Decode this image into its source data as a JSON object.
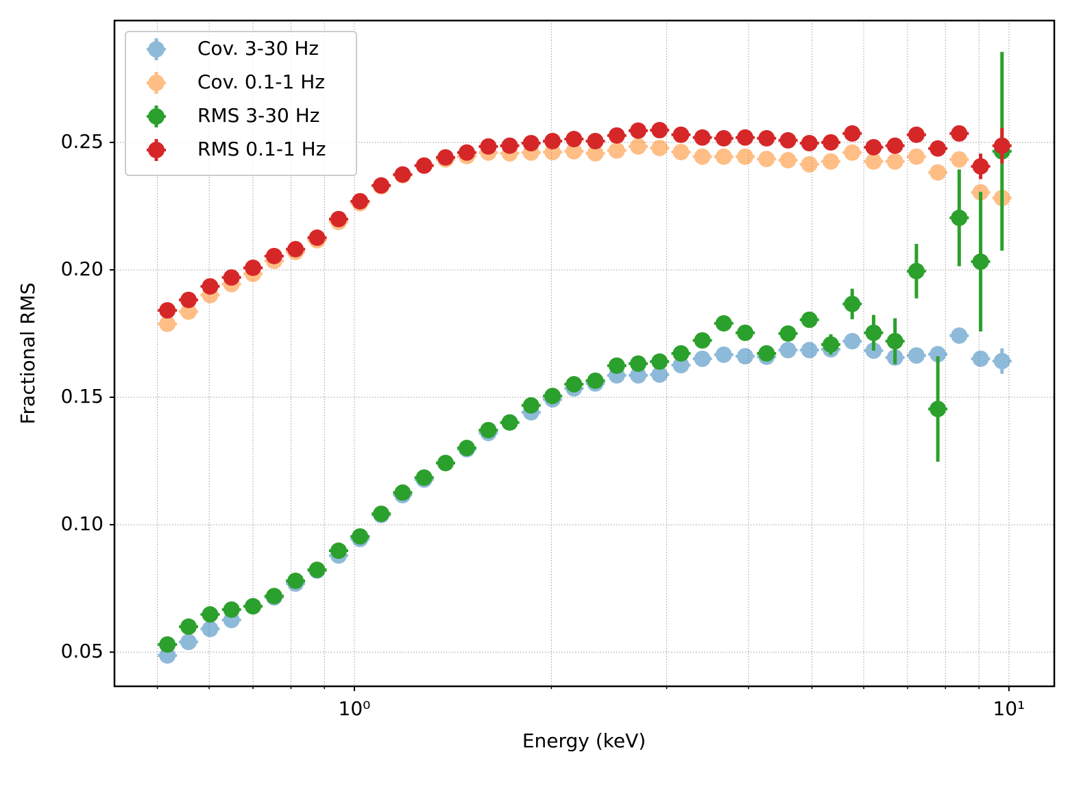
{
  "chart_data": {
    "type": "errorbar",
    "xlabel": "Energy (keV)",
    "ylabel": "Fractional RMS",
    "xlog": true,
    "grid": true,
    "legend": "upper left",
    "xlim": [
      0.43,
      11.73
    ],
    "ylim": [
      0.0366,
      0.2978
    ],
    "xticks": [
      {
        "value": 1,
        "label": "10⁰"
      },
      {
        "value": 10,
        "label": "10¹"
      }
    ],
    "xminorticks": [
      0.5,
      0.6,
      0.7,
      0.8,
      0.9,
      2,
      3,
      4,
      5,
      6,
      7,
      8,
      9
    ],
    "yticks": [
      0.05,
      {
        "value": 0.1,
        "label": "0.10"
      },
      0.15,
      {
        "value": 0.2,
        "label": "0.20"
      },
      0.25
    ],
    "x": [
      0.518,
      0.558,
      0.602,
      0.649,
      0.7,
      0.754,
      0.813,
      0.877,
      0.946,
      1.02,
      1.099,
      1.185,
      1.278,
      1.378,
      1.485,
      1.602,
      1.727,
      1.862,
      2.008,
      2.165,
      2.334,
      2.517,
      2.714,
      2.926,
      3.155,
      3.401,
      3.667,
      3.954,
      4.263,
      4.597,
      4.956,
      5.344,
      5.762,
      6.212,
      6.698,
      7.222,
      7.787,
      8.395,
      9.052,
      9.759
    ],
    "series": [
      {
        "name": "Cov. 3-30 Hz",
        "color": "#1f77b4",
        "alpha": 0.5,
        "values": [
          0.0487,
          0.054,
          0.0591,
          0.0626,
          0.068,
          0.0715,
          0.0769,
          0.082,
          0.0879,
          0.0944,
          0.1038,
          0.1116,
          0.1177,
          0.1242,
          0.1296,
          0.136,
          0.1401,
          0.1441,
          0.1492,
          0.1535,
          0.1554,
          0.1586,
          0.1586,
          0.1589,
          0.1626,
          0.1651,
          0.1667,
          0.1661,
          0.1659,
          0.1685,
          0.1685,
          0.1688,
          0.172,
          0.1683,
          0.1656,
          0.1664,
          0.1669,
          0.1742,
          0.1651,
          0.1642
        ],
        "errors": [
          0.0015,
          0.0015,
          0.0015,
          0.0015,
          0.0015,
          0.0015,
          0.0015,
          0.0015,
          0.0015,
          0.0015,
          0.0015,
          0.0015,
          0.0015,
          0.0015,
          0.0015,
          0.0015,
          0.0015,
          0.0015,
          0.0015,
          0.0015,
          0.0015,
          0.0015,
          0.0015,
          0.0015,
          0.0015,
          0.0015,
          0.0015,
          0.0015,
          0.0015,
          0.0015,
          0.0015,
          0.0015,
          0.0015,
          0.0015,
          0.0015,
          0.0015,
          0.0015,
          0.002,
          0.003,
          0.005
        ]
      },
      {
        "name": "Cov. 0.1-1 Hz",
        "color": "#ff7f0e",
        "alpha": 0.5,
        "values": [
          0.1788,
          0.1836,
          0.1901,
          0.1944,
          0.1984,
          0.2035,
          0.207,
          0.2116,
          0.2188,
          0.2261,
          0.2328,
          0.2371,
          0.2409,
          0.2433,
          0.2446,
          0.246,
          0.2457,
          0.246,
          0.2462,
          0.2465,
          0.2457,
          0.2468,
          0.2484,
          0.2478,
          0.2462,
          0.2444,
          0.2444,
          0.2444,
          0.2435,
          0.243,
          0.2414,
          0.2425,
          0.246,
          0.2425,
          0.2425,
          0.2444,
          0.2382,
          0.2433,
          0.2304,
          0.2282
        ],
        "errors": [
          0.0015,
          0.0015,
          0.0015,
          0.0015,
          0.0015,
          0.0015,
          0.0015,
          0.0015,
          0.0015,
          0.0015,
          0.0015,
          0.0015,
          0.0015,
          0.0015,
          0.0015,
          0.0015,
          0.0015,
          0.0015,
          0.0015,
          0.0015,
          0.0015,
          0.0015,
          0.0015,
          0.0015,
          0.0015,
          0.0015,
          0.0015,
          0.0015,
          0.0015,
          0.0015,
          0.0015,
          0.0015,
          0.0015,
          0.0015,
          0.0015,
          0.0015,
          0.0015,
          0.002,
          0.002,
          0.002
        ]
      },
      {
        "name": "RMS 3-30 Hz",
        "color": "#2ca02c",
        "alpha": 1,
        "values": [
          0.053,
          0.06,
          0.0648,
          0.0667,
          0.068,
          0.072,
          0.078,
          0.0823,
          0.0898,
          0.0954,
          0.1043,
          0.1126,
          0.1185,
          0.1242,
          0.1301,
          0.1371,
          0.1401,
          0.1468,
          0.1505,
          0.1551,
          0.1565,
          0.1624,
          0.1632,
          0.164,
          0.1672,
          0.1723,
          0.179,
          0.1753,
          0.1672,
          0.175,
          0.1804,
          0.1707,
          0.1866,
          0.1753,
          0.172,
          0.1995,
          0.1454,
          0.2204,
          0.2032,
          0.2465
        ],
        "errors": [
          0.0015,
          0.0015,
          0.0015,
          0.0015,
          0.0015,
          0.0015,
          0.0015,
          0.0015,
          0.0015,
          0.0015,
          0.0015,
          0.0015,
          0.0015,
          0.0015,
          0.0015,
          0.0015,
          0.0015,
          0.0015,
          0.0015,
          0.0015,
          0.0015,
          0.0015,
          0.0015,
          0.0015,
          0.0015,
          0.003,
          0.003,
          0.003,
          0.002,
          0.003,
          0.003,
          0.004,
          0.006,
          0.007,
          0.009,
          0.0107,
          0.0207,
          0.019,
          0.0274,
          0.039
        ]
      },
      {
        "name": "RMS 0.1-1 Hz",
        "color": "#d62728",
        "alpha": 1,
        "values": [
          0.1841,
          0.1882,
          0.1935,
          0.197,
          0.2008,
          0.2054,
          0.2081,
          0.2126,
          0.2199,
          0.2269,
          0.2331,
          0.2374,
          0.2409,
          0.2441,
          0.246,
          0.2484,
          0.2487,
          0.2497,
          0.2505,
          0.2513,
          0.2505,
          0.2527,
          0.2546,
          0.2548,
          0.253,
          0.2519,
          0.2516,
          0.2519,
          0.2516,
          0.2508,
          0.2497,
          0.25,
          0.2535,
          0.2481,
          0.2487,
          0.253,
          0.2476,
          0.2535,
          0.2406,
          0.2487
        ],
        "errors": [
          0.0015,
          0.0015,
          0.0015,
          0.0015,
          0.0015,
          0.0015,
          0.0015,
          0.0015,
          0.0015,
          0.0015,
          0.0015,
          0.0015,
          0.0015,
          0.0015,
          0.0015,
          0.0015,
          0.0015,
          0.0015,
          0.0015,
          0.0015,
          0.0015,
          0.0015,
          0.0015,
          0.0015,
          0.0015,
          0.0015,
          0.0015,
          0.0015,
          0.0015,
          0.0015,
          0.0015,
          0.0015,
          0.0015,
          0.0015,
          0.0015,
          0.0015,
          0.0015,
          0.002,
          0.005,
          0.007
        ]
      }
    ]
  }
}
